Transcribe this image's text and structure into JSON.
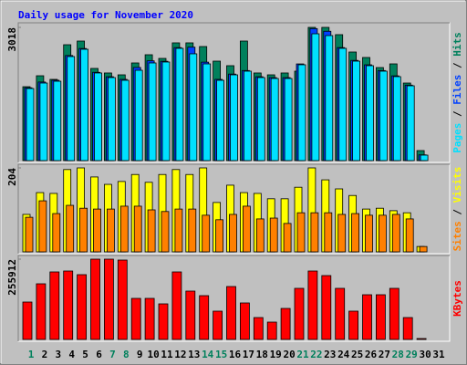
{
  "chart_data": [
    {
      "type": "bar",
      "title": "Daily usage for November 2020",
      "legend_separator": " / ",
      "ylim": [
        0,
        3018
      ],
      "yticks": [
        3018
      ],
      "series": [
        {
          "name": "Hits",
          "color": "#00805c",
          "values": [
            1674,
            1922,
            1840,
            2625,
            2708,
            2088,
            1985,
            1943,
            2212,
            2398,
            2315,
            2667,
            2667,
            2584,
            2253,
            2150,
            2708,
            1985,
            1943,
            1985,
            2026,
            3018,
            3018,
            2853,
            2460,
            2336,
            2108,
            2191,
            1757,
            227,
            null
          ]
        },
        {
          "name": "Files",
          "color": "#0040ff",
          "values": [
            1650,
            1780,
            1820,
            2380,
            2540,
            2000,
            1900,
            1840,
            2110,
            2260,
            2250,
            2560,
            2570,
            2230,
            1840,
            1960,
            2040,
            1900,
            1880,
            1880,
            2190,
            2990,
            2930,
            2560,
            2270,
            2170,
            2040,
            1920,
            1710,
            130,
            null
          ]
        },
        {
          "name": "Pages",
          "color": "#00e0ff",
          "values": [
            1633,
            1757,
            1798,
            2357,
            2522,
            1985,
            1881,
            1819,
            2046,
            2212,
            2233,
            2543,
            2419,
            2191,
            1819,
            1943,
            2026,
            1881,
            1860,
            1860,
            2171,
            2873,
            2832,
            2543,
            2253,
            2150,
            2026,
            1902,
            1695,
            124,
            null
          ]
        }
      ]
    },
    {
      "type": "bar",
      "legend_separator": " / ",
      "ylim": [
        0,
        204
      ],
      "yticks": [
        204
      ],
      "series": [
        {
          "name": "Visits",
          "color": "#ffff00",
          "values": [
            91,
            144,
            142,
            200,
            204,
            182,
            164,
            171,
            188,
            169,
            188,
            200,
            188,
            204,
            120,
            162,
            144,
            142,
            129,
            129,
            157,
            204,
            175,
            153,
            137,
            104,
            106,
            100,
            95,
            13,
            null
          ]
        },
        {
          "name": "Sites",
          "color": "#ff8000",
          "values": [
            84,
            124,
            93,
            113,
            106,
            104,
            104,
            111,
            111,
            102,
            98,
            104,
            104,
            89,
            78,
            91,
            111,
            80,
            82,
            69,
            95,
            95,
            95,
            91,
            93,
            89,
            89,
            91,
            80,
            13,
            null
          ]
        }
      ]
    },
    {
      "type": "bar",
      "ylim": [
        0,
        255912
      ],
      "yticks": [
        255912
      ],
      "categories": [
        "1",
        "2",
        "3",
        "4",
        "5",
        "6",
        "7",
        "8",
        "9",
        "10",
        "11",
        "12",
        "13",
        "14",
        "15",
        "16",
        "17",
        "18",
        "19",
        "20",
        "21",
        "22",
        "23",
        "24",
        "25",
        "26",
        "27",
        "28",
        "29",
        "30",
        "31"
      ],
      "category_colors": [
        "#00805c",
        "#000000",
        "#000000",
        "#000000",
        "#000000",
        "#000000",
        "#00805c",
        "#00805c",
        "#000000",
        "#000000",
        "#000000",
        "#000000",
        "#000000",
        "#00805c",
        "#00805c",
        "#000000",
        "#000000",
        "#000000",
        "#000000",
        "#000000",
        "#00805c",
        "#00805c",
        "#000000",
        "#000000",
        "#000000",
        "#000000",
        "#000000",
        "#00805c",
        "#00805c",
        "#000000",
        "#000000"
      ],
      "series": [
        {
          "name": "KBytes",
          "color": "#ff0000",
          "values": [
            119232,
            177394,
            215199,
            218107,
            206475,
            255912,
            255912,
            253004,
            130864,
            130864,
            113416,
            215199,
            154129,
            139588,
            90151,
            168669,
            116323,
            69794,
            55254,
            98875,
            162853,
            218107,
            203566,
            162853,
            90151,
            142496,
            142496,
            162853,
            69794,
            2908,
            null
          ]
        }
      ]
    }
  ]
}
